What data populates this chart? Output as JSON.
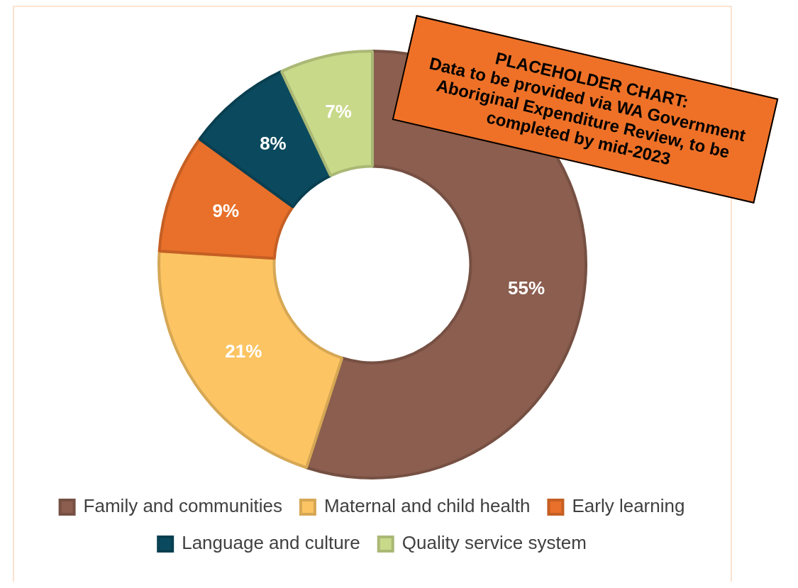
{
  "chart_data": {
    "type": "donut",
    "categories": [
      "Family and communities",
      "Maternal and child health",
      "Early learning",
      "Language and culture",
      "Quality service system"
    ],
    "values": [
      55,
      21,
      9,
      8,
      7
    ],
    "value_labels": [
      "55%",
      "21%",
      "9%",
      "8%",
      "7%"
    ],
    "colors": [
      "#8b5e4f",
      "#fcc463",
      "#e8702a",
      "#0b4a5e",
      "#c8d98a"
    ],
    "legend": "bottom",
    "annotations": [
      "PLACEHOLDER CHART:\nData to be provided via WA Government Aboriginal Expenditure Review, to be completed by mid-2023"
    ]
  }
}
